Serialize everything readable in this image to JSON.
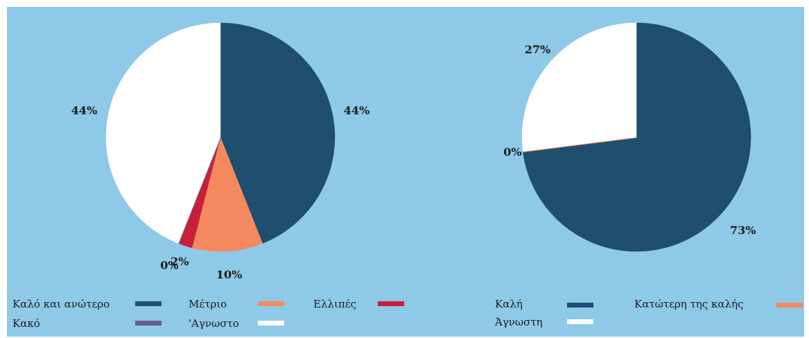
{
  "chart_data": [
    {
      "type": "pie",
      "categories": [
        "Καλό και ανώτερο",
        "Μέτριο",
        "Ελλιπές",
        "Κακό",
        "'Αγνωστο"
      ],
      "values": [
        44,
        10,
        2,
        0,
        44
      ],
      "value_labels": [
        "44%",
        "10%",
        "2%",
        "0%",
        "44%"
      ],
      "colors": [
        "#1f4e6e",
        "#f4895f",
        "#c8203a",
        "#6b5b95",
        "#ffffff"
      ]
    },
    {
      "type": "pie",
      "categories": [
        "Καλή",
        "Κατώτερη της καλής",
        "Άγνωστη"
      ],
      "values": [
        73,
        0,
        27
      ],
      "value_labels": [
        "73%",
        "0%",
        "27%"
      ],
      "colors": [
        "#1f4e6e",
        "#f4895f",
        "#ffffff"
      ]
    }
  ]
}
